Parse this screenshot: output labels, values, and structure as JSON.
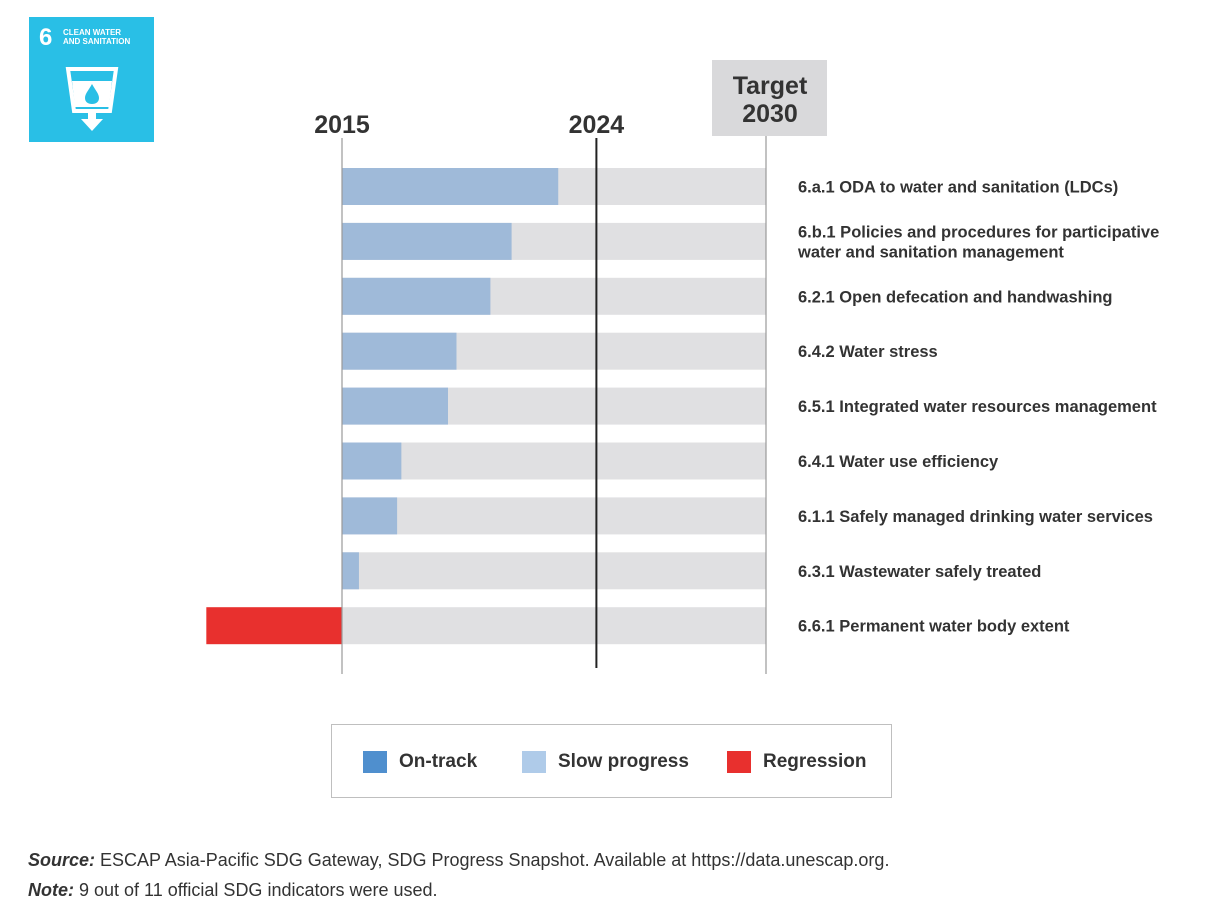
{
  "logo": {
    "number": "6",
    "name_line1": "CLEAN WATER",
    "name_line2": "AND SANITATION",
    "color": "#29bfe6"
  },
  "chart_data": {
    "type": "bar",
    "orientation": "horizontal",
    "axis_markers": [
      {
        "label": "2015",
        "value": 0
      },
      {
        "label": "2024",
        "value": 0.6
      },
      {
        "label": "Target\n2030",
        "value": 1.0
      }
    ],
    "xlim": [
      -0.32,
      1.0
    ],
    "categories": [
      "6.a.1 ODA to water and sanitation (LDCs)",
      "6.b.1 Policies and procedures for participative water and sanitation management",
      "6.2.1 Open defecation and handwashing",
      "6.4.2 Water stress",
      "6.5.1 Integrated water resources management",
      "6.4.1 Water use efficiency",
      "6.1.1 Safely managed drinking water services",
      "6.3.1 Wastewater safely treated",
      "6.6.1 Permanent water body extent"
    ],
    "label_lines": [
      [
        "6.a.1 ODA to water and sanitation (LDCs)"
      ],
      [
        "6.b.1 Policies and procedures for participative",
        "water and sanitation management"
      ],
      [
        "6.2.1 Open defecation and handwashing"
      ],
      [
        "6.4.2 Water stress"
      ],
      [
        "6.5.1 Integrated water resources management"
      ],
      [
        "6.4.1 Water use efficiency"
      ],
      [
        "6.1.1 Safely managed drinking water services"
      ],
      [
        "6.3.1 Wastewater safely treated"
      ],
      [
        "6.6.1 Permanent water body extent"
      ]
    ],
    "values": [
      0.51,
      0.4,
      0.35,
      0.27,
      0.25,
      0.14,
      0.13,
      0.04,
      -0.32
    ],
    "status": [
      "slow",
      "slow",
      "slow",
      "slow",
      "slow",
      "slow",
      "slow",
      "slow",
      "regression"
    ],
    "colors": {
      "on_track": "#4f8fce",
      "slow": "#9fbad9",
      "regression": "#e8302e",
      "track": "#e0e0e2",
      "target_box": "#d9d9db"
    }
  },
  "legend": {
    "items": [
      {
        "label": "On-track",
        "color": "#4f8fce"
      },
      {
        "label": "Slow progress",
        "color": "#afcbe9"
      },
      {
        "label": "Regression",
        "color": "#e8302e"
      }
    ]
  },
  "footer": {
    "source_label": "Source:",
    "source_text": " ESCAP Asia-Pacific SDG Gateway, SDG Progress Snapshot. Available at https://data.unescap.org.",
    "note_label": "Note:",
    "note_text": " 9 out of 11 official SDG indicators were used."
  }
}
